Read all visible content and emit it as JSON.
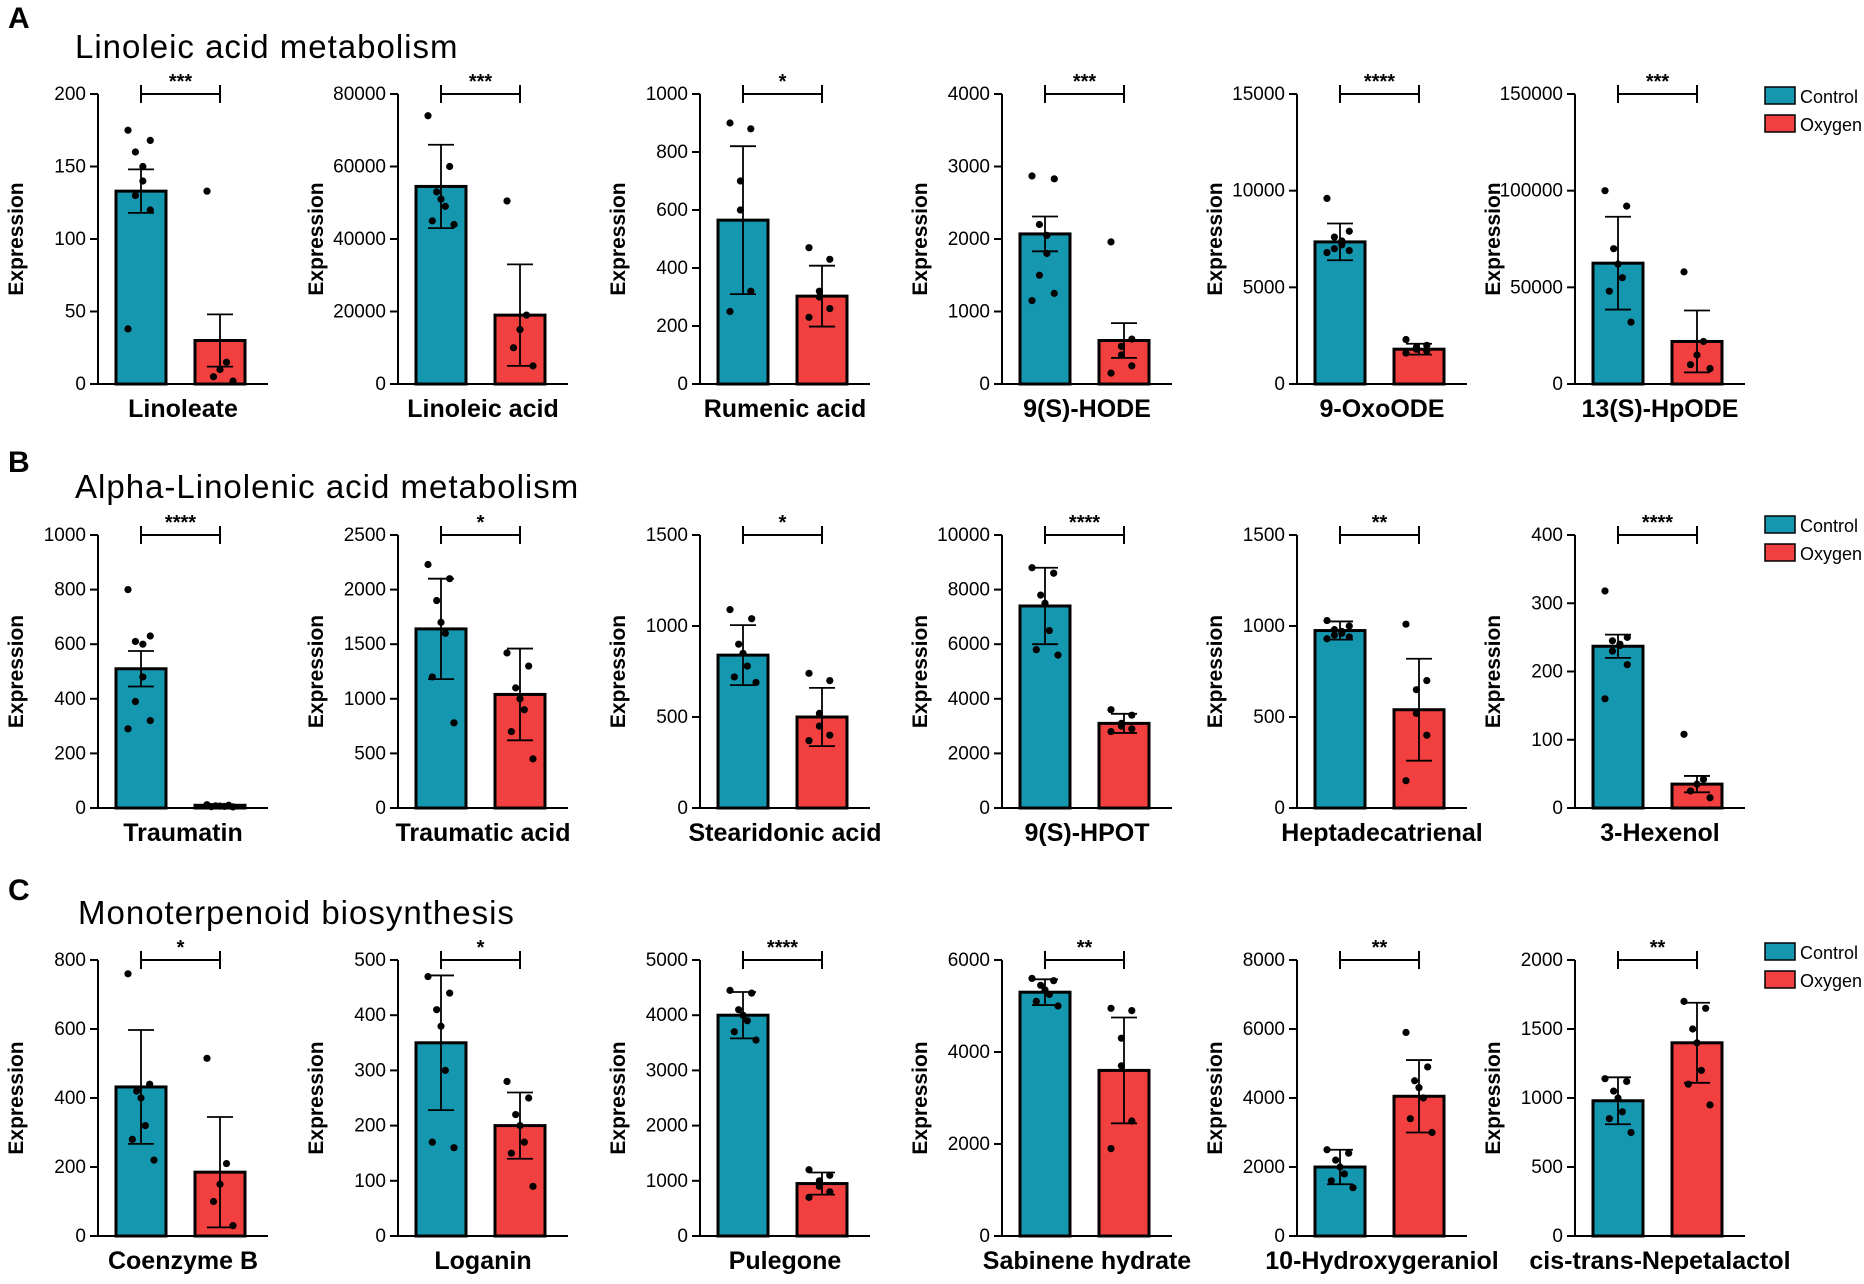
{
  "colors": {
    "control": "#1597B0",
    "oxygen": "#F24040"
  },
  "legend": [
    {
      "name": "Control",
      "color": "#1597B0"
    },
    {
      "name": "Oxygen",
      "color": "#F24040"
    }
  ],
  "sections": [
    {
      "letter": "A",
      "title": "Linoleic acid metabolism"
    },
    {
      "letter": "B",
      "title": "Alpha-Linolenic acid metabolism"
    },
    {
      "letter": "C",
      "title": "Monoterpenoid biosynthesis"
    }
  ],
  "chart_data": [
    {
      "type": "bar",
      "section": "A",
      "xlabel": "Linoleate",
      "ylabel": "Expression",
      "ylim": [
        0,
        200
      ],
      "yticks": [
        0,
        50,
        100,
        150,
        200
      ],
      "yticklabels": [
        "0",
        "50",
        "100",
        "150",
        "200"
      ],
      "significance": "***",
      "series": [
        {
          "name": "Control",
          "mean": 133,
          "sd": 15,
          "points": [
            175,
            168,
            160,
            150,
            140,
            130,
            120,
            38
          ]
        },
        {
          "name": "Oxygen",
          "mean": 30,
          "sd": 18,
          "points": [
            133,
            15,
            10,
            5,
            2
          ]
        }
      ]
    },
    {
      "type": "bar",
      "section": "A",
      "xlabel": "Linoleic acid",
      "ylabel": "Expression",
      "ylim": [
        0,
        80000
      ],
      "yticks": [
        0,
        20000,
        40000,
        60000,
        80000
      ],
      "yticklabels": [
        "0",
        "20000",
        "40000",
        "60000",
        "80000"
      ],
      "significance": "***",
      "series": [
        {
          "name": "Control",
          "mean": 54500,
          "sd": 11500,
          "points": [
            74000,
            60000,
            53000,
            51000,
            49000,
            45000,
            44000
          ]
        },
        {
          "name": "Oxygen",
          "mean": 19000,
          "sd": 14000,
          "points": [
            50500,
            19000,
            15000,
            10000,
            5000
          ]
        }
      ]
    },
    {
      "type": "bar",
      "section": "A",
      "xlabel": "Rumenic acid",
      "ylabel": "Expression",
      "ylim": [
        0,
        1000
      ],
      "yticks": [
        0,
        200,
        400,
        600,
        800,
        1000
      ],
      "yticklabels": [
        "0",
        "200",
        "400",
        "600",
        "800",
        "1000"
      ],
      "significance": "*",
      "series": [
        {
          "name": "Control",
          "mean": 565,
          "sd": 255,
          "points": [
            900,
            880,
            700,
            600,
            320,
            250
          ]
        },
        {
          "name": "Oxygen",
          "mean": 303,
          "sd": 105,
          "points": [
            470,
            430,
            320,
            300,
            260,
            230
          ]
        }
      ]
    },
    {
      "type": "bar",
      "section": "A",
      "xlabel": "9(S)-HODE",
      "ylabel": "Expression",
      "ylim": [
        0,
        4000
      ],
      "yticks": [
        0,
        1000,
        2000,
        3000,
        4000
      ],
      "yticklabels": [
        "0",
        "1000",
        "2000",
        "3000",
        "4000"
      ],
      "significance": "***",
      "series": [
        {
          "name": "Control",
          "mean": 2070,
          "sd": 240,
          "points": [
            2870,
            2830,
            2200,
            2050,
            1800,
            1500,
            1250,
            1150
          ]
        },
        {
          "name": "Oxygen",
          "mean": 600,
          "sd": 240,
          "points": [
            1960,
            620,
            520,
            400,
            250,
            150
          ]
        }
      ]
    },
    {
      "type": "bar",
      "section": "A",
      "xlabel": "9-OxoODE",
      "ylabel": "Expression",
      "ylim": [
        0,
        15000
      ],
      "yticks": [
        0,
        5000,
        10000,
        15000
      ],
      "yticklabels": [
        "0",
        "5000",
        "10000",
        "15000"
      ],
      "significance": "****",
      "series": [
        {
          "name": "Control",
          "mean": 7350,
          "sd": 950,
          "points": [
            9600,
            7900,
            7600,
            7400,
            7200,
            7000,
            6900,
            6800
          ]
        },
        {
          "name": "Oxygen",
          "mean": 1800,
          "sd": 280,
          "points": [
            2300,
            2000,
            1900,
            1800,
            1700,
            1600
          ]
        }
      ]
    },
    {
      "type": "bar",
      "section": "A",
      "xlabel": "13(S)-HpODE",
      "ylabel": "Expression",
      "ylim": [
        0,
        150000
      ],
      "yticks": [
        0,
        50000,
        100000,
        150000
      ],
      "yticklabels": [
        "0",
        "50000",
        "100000",
        "150000"
      ],
      "significance": "***",
      "series": [
        {
          "name": "Control",
          "mean": 62500,
          "sd": 24000,
          "points": [
            100000,
            92000,
            70000,
            62000,
            55000,
            48000,
            32000
          ]
        },
        {
          "name": "Oxygen",
          "mean": 22000,
          "sd": 16000,
          "points": [
            58000,
            22000,
            15000,
            10000,
            8000
          ]
        }
      ]
    },
    {
      "type": "bar",
      "section": "B",
      "xlabel": "Traumatin",
      "ylabel": "Expression",
      "ylim": [
        0,
        1000
      ],
      "yticks": [
        0,
        200,
        400,
        600,
        800,
        1000
      ],
      "yticklabels": [
        "0",
        "200",
        "400",
        "600",
        "800",
        "1000"
      ],
      "significance": "****",
      "series": [
        {
          "name": "Control",
          "mean": 510,
          "sd": 65,
          "points": [
            800,
            630,
            610,
            600,
            480,
            390,
            320,
            290
          ]
        },
        {
          "name": "Oxygen",
          "mean": 10,
          "sd": 3,
          "points": [
            12,
            10,
            8,
            7,
            6,
            5,
            4
          ]
        }
      ]
    },
    {
      "type": "bar",
      "section": "B",
      "xlabel": "Traumatic acid",
      "ylabel": "Expression",
      "ylim": [
        0,
        2500
      ],
      "yticks": [
        0,
        500,
        1000,
        1500,
        2000,
        2500
      ],
      "yticklabels": [
        "0",
        "500",
        "1000",
        "1500",
        "2000",
        "2500"
      ],
      "significance": "*",
      "series": [
        {
          "name": "Control",
          "mean": 1640,
          "sd": 460,
          "points": [
            2230,
            2100,
            1900,
            1700,
            1600,
            1200,
            780
          ]
        },
        {
          "name": "Oxygen",
          "mean": 1040,
          "sd": 420,
          "points": [
            1420,
            1300,
            1100,
            1000,
            900,
            700,
            450
          ]
        }
      ]
    },
    {
      "type": "bar",
      "section": "B",
      "xlabel": "Stearidonic acid",
      "ylabel": "Expression",
      "ylim": [
        0,
        1500
      ],
      "yticks": [
        0,
        500,
        1000,
        1500
      ],
      "yticklabels": [
        "0",
        "500",
        "1000",
        "1500"
      ],
      "significance": "*",
      "series": [
        {
          "name": "Control",
          "mean": 840,
          "sd": 165,
          "points": [
            1090,
            1040,
            900,
            850,
            780,
            720,
            690
          ]
        },
        {
          "name": "Oxygen",
          "mean": 500,
          "sd": 160,
          "points": [
            740,
            700,
            520,
            450,
            400,
            370
          ]
        }
      ]
    },
    {
      "type": "bar",
      "section": "B",
      "xlabel": "9(S)-HPOT",
      "ylabel": "Expression",
      "ylim": [
        0,
        10000
      ],
      "yticks": [
        0,
        2000,
        4000,
        6000,
        8000,
        10000
      ],
      "yticklabels": [
        "0",
        "2000",
        "4000",
        "6000",
        "8000",
        "10000"
      ],
      "significance": "****",
      "series": [
        {
          "name": "Control",
          "mean": 7400,
          "sd": 1400,
          "points": [
            8800,
            8600,
            7800,
            7500,
            6500,
            5800,
            5600
          ]
        },
        {
          "name": "Oxygen",
          "mean": 3100,
          "sd": 350,
          "points": [
            3600,
            3400,
            3100,
            3000,
            2900,
            2800
          ]
        }
      ]
    },
    {
      "type": "bar",
      "section": "B",
      "xlabel": "Heptadecatrienal",
      "ylabel": "Expression",
      "ylim": [
        0,
        1500
      ],
      "yticks": [
        0,
        500,
        1000,
        1500
      ],
      "yticklabels": [
        "0",
        "500",
        "1000",
        "1500"
      ],
      "significance": "**",
      "series": [
        {
          "name": "Control",
          "mean": 975,
          "sd": 50,
          "points": [
            1030,
            1000,
            980,
            970,
            960,
            950,
            940,
            930
          ]
        },
        {
          "name": "Oxygen",
          "mean": 540,
          "sd": 280,
          "points": [
            1010,
            700,
            650,
            520,
            400,
            150
          ]
        }
      ]
    },
    {
      "type": "bar",
      "section": "B",
      "xlabel": "3-Hexenol",
      "ylabel": "Expression",
      "ylim": [
        0,
        400
      ],
      "yticks": [
        0,
        100,
        200,
        300,
        400
      ],
      "yticklabels": [
        "0",
        "100",
        "200",
        "300",
        "400"
      ],
      "significance": "****",
      "series": [
        {
          "name": "Control",
          "mean": 237,
          "sd": 17,
          "points": [
            318,
            250,
            245,
            240,
            238,
            230,
            210,
            160
          ]
        },
        {
          "name": "Oxygen",
          "mean": 35,
          "sd": 12,
          "points": [
            108,
            42,
            35,
            25,
            15
          ]
        }
      ]
    },
    {
      "type": "bar",
      "section": "C",
      "xlabel": "Coenzyme B",
      "ylabel": "Expression",
      "ylim": [
        0,
        800
      ],
      "yticks": [
        0,
        200,
        400,
        600,
        800
      ],
      "yticklabels": [
        "0",
        "200",
        "400",
        "600",
        "800"
      ],
      "significance": "*",
      "series": [
        {
          "name": "Control",
          "mean": 432,
          "sd": 165,
          "points": [
            760,
            440,
            420,
            400,
            320,
            280,
            220
          ]
        },
        {
          "name": "Oxygen",
          "mean": 185,
          "sd": 160,
          "points": [
            515,
            210,
            150,
            100,
            30
          ]
        }
      ]
    },
    {
      "type": "bar",
      "section": "C",
      "xlabel": "Loganin",
      "ylabel": "Expression",
      "ylim": [
        0,
        500
      ],
      "yticks": [
        0,
        100,
        200,
        300,
        400,
        500
      ],
      "yticklabels": [
        "0",
        "100",
        "200",
        "300",
        "400",
        "500"
      ],
      "significance": "*",
      "series": [
        {
          "name": "Control",
          "mean": 350,
          "sd": 122,
          "points": [
            470,
            440,
            410,
            380,
            300,
            170,
            160
          ]
        },
        {
          "name": "Oxygen",
          "mean": 200,
          "sd": 60,
          "points": [
            280,
            250,
            220,
            200,
            170,
            150,
            90
          ]
        }
      ]
    },
    {
      "type": "bar",
      "section": "C",
      "xlabel": "Pulegone",
      "ylabel": "Expression",
      "ylim": [
        0,
        5000
      ],
      "yticks": [
        0,
        1000,
        2000,
        3000,
        4000,
        5000
      ],
      "yticklabels": [
        "0",
        "1000",
        "2000",
        "3000",
        "4000",
        "5000"
      ],
      "significance": "****",
      "series": [
        {
          "name": "Control",
          "mean": 4000,
          "sd": 420,
          "points": [
            4450,
            4400,
            4100,
            4000,
            3900,
            3700,
            3550
          ]
        },
        {
          "name": "Oxygen",
          "mean": 950,
          "sd": 200,
          "points": [
            1200,
            1100,
            1000,
            900,
            800,
            700
          ]
        }
      ]
    },
    {
      "type": "bar",
      "section": "C",
      "xlabel": "Sabinene hydrate",
      "ylabel": "Expression",
      "ylim": [
        0,
        6000
      ],
      "yticks": [
        0,
        2000,
        4000,
        6000
      ],
      "yticklabels": [
        "0",
        "2000",
        "4000",
        "6000"
      ],
      "significance": "**",
      "series": [
        {
          "name": "Control",
          "mean": 5300,
          "sd": 280,
          "points": [
            5600,
            5550,
            5450,
            5350,
            5250,
            5100,
            5000
          ]
        },
        {
          "name": "Oxygen",
          "mean": 3600,
          "sd": 1150,
          "points": [
            4950,
            4900,
            4300,
            3700,
            2500,
            1900
          ]
        }
      ]
    },
    {
      "type": "bar",
      "section": "C",
      "xlabel": "10-Hydroxygeraniol",
      "ylabel": "Expression",
      "ylim": [
        0,
        8000
      ],
      "yticks": [
        0,
        2000,
        4000,
        6000,
        8000
      ],
      "yticklabels": [
        "0",
        "2000",
        "4000",
        "6000",
        "8000"
      ],
      "significance": "**",
      "series": [
        {
          "name": "Control",
          "mean": 2000,
          "sd": 500,
          "points": [
            2500,
            2400,
            2200,
            2000,
            1800,
            1600,
            1400
          ]
        },
        {
          "name": "Oxygen",
          "mean": 4050,
          "sd": 1050,
          "points": [
            5900,
            4900,
            4500,
            4300,
            4000,
            3400,
            3000
          ]
        }
      ]
    },
    {
      "type": "bar",
      "section": "C",
      "xlabel": "cis-trans-Nepetalactol",
      "ylabel": "Expression",
      "ylim": [
        0,
        2000
      ],
      "yticks": [
        0,
        500,
        1000,
        1500,
        2000
      ],
      "yticklabels": [
        "0",
        "500",
        "1000",
        "1500",
        "2000"
      ],
      "significance": "**",
      "series": [
        {
          "name": "Control",
          "mean": 980,
          "sd": 170,
          "points": [
            1140,
            1120,
            1050,
            1000,
            900,
            850,
            750
          ]
        },
        {
          "name": "Oxygen",
          "mean": 1400,
          "sd": 290,
          "points": [
            1700,
            1650,
            1500,
            1400,
            1200,
            1100,
            950
          ]
        }
      ]
    }
  ]
}
